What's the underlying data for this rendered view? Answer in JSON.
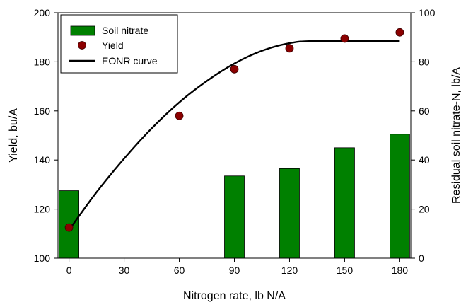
{
  "chart_data": {
    "type": "bar+scatter+line",
    "title": "",
    "xlabel": "Nitrogen rate, lb N/A",
    "ylabel_left": "Yield, bu/A",
    "ylabel_right": "Residual soil nitrate-N, lb/A",
    "x_ticks": [
      0,
      30,
      60,
      90,
      120,
      150,
      180
    ],
    "x_range": [
      -6,
      186
    ],
    "yleft_ticks": [
      100,
      120,
      140,
      160,
      180,
      200
    ],
    "yleft_range": [
      100,
      200
    ],
    "yright_ticks": [
      0,
      20,
      40,
      60,
      80,
      100
    ],
    "yright_range": [
      0,
      100
    ],
    "grid": false,
    "legend_position": "top-left",
    "legend": [
      {
        "label": "Soil nitrate",
        "kind": "bar"
      },
      {
        "label": "Yield",
        "kind": "marker"
      },
      {
        "label": "EONR curve",
        "kind": "line"
      }
    ],
    "series": [
      {
        "name": "Soil nitrate",
        "kind": "bar",
        "axis": "right",
        "color": "#008000",
        "x": [
          0,
          90,
          120,
          150,
          180
        ],
        "values": [
          27.5,
          33.5,
          36.5,
          45,
          50.5
        ]
      },
      {
        "name": "Yield",
        "kind": "scatter",
        "axis": "left",
        "color": "#8b0000",
        "x": [
          0,
          60,
          90,
          120,
          150,
          180
        ],
        "values": [
          112.5,
          158,
          177,
          185.5,
          189.5,
          192
        ]
      },
      {
        "name": "EONR curve",
        "kind": "line",
        "axis": "left",
        "color": "#000000",
        "model": "quadratic-plateau",
        "x": [
          0,
          15,
          30,
          45,
          60,
          75,
          90,
          105,
          120,
          135,
          180
        ],
        "values": [
          111.5,
          126.9,
          140.6,
          152.9,
          163.5,
          172.2,
          179.3,
          184.5,
          187.6,
          188.5,
          188.5
        ]
      }
    ]
  }
}
